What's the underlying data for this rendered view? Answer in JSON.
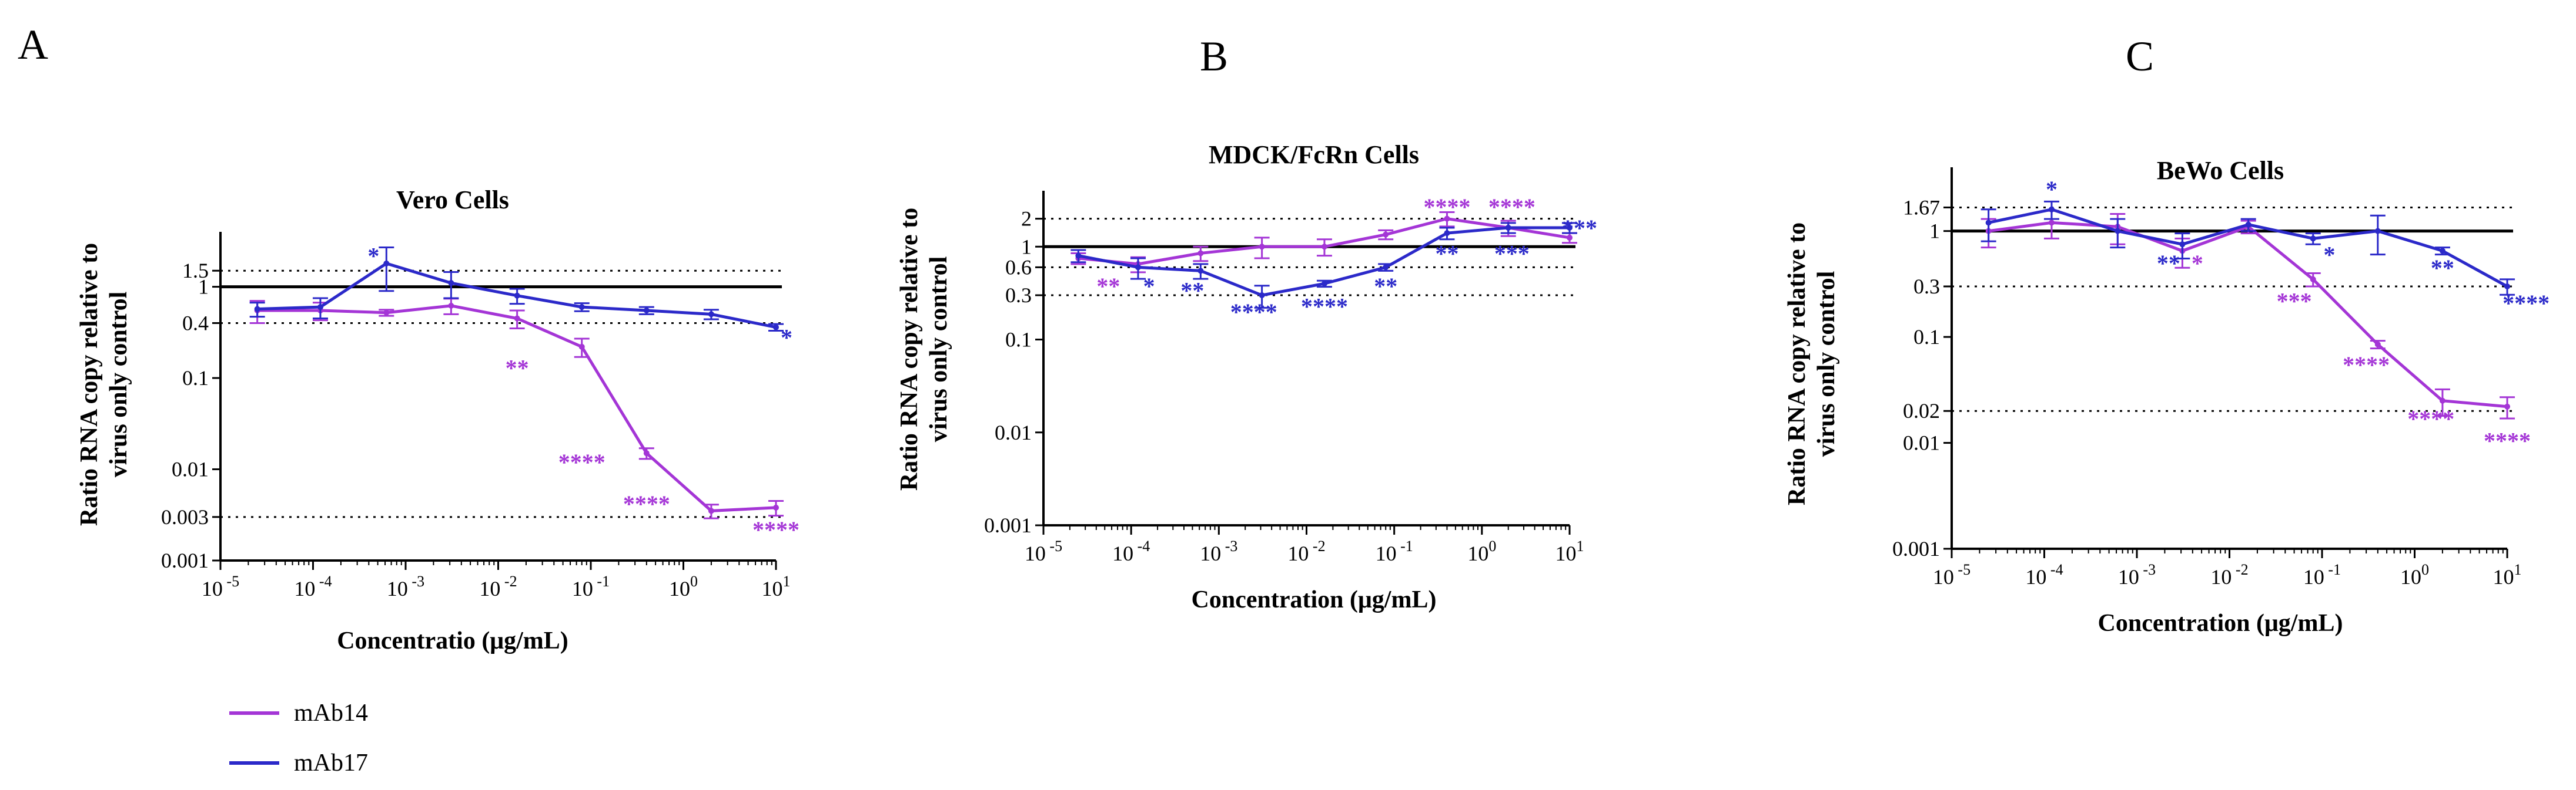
{
  "colors": {
    "mAb14": "#a435d6",
    "mAb17": "#2b29c9",
    "axis": "#000000"
  },
  "legend": [
    {
      "name": "mAb14",
      "color": "#a435d6"
    },
    {
      "name": "mAb17",
      "color": "#2b29c9"
    }
  ],
  "chart_data": [
    {
      "panel": "A",
      "type": "line",
      "title": "Vero Cells",
      "xlabel": "Concentratio (μg/mL)",
      "ylabel": [
        "Ratio RNA copy relative to",
        "virus only control"
      ],
      "xscale": "log",
      "yscale": "log",
      "xlim_exp": [
        -5,
        1
      ],
      "xticks_exp": [
        -5,
        -4,
        -3,
        -2,
        -1,
        0,
        1
      ],
      "ylim": [
        0.001,
        4
      ],
      "yticks": [
        0.001,
        0.003,
        0.01,
        0.1,
        0.4,
        1,
        1.5
      ],
      "ytick_labels": [
        "0.001",
        "0.003",
        "0.01",
        "0.1",
        "0.4",
        "1",
        "1.5"
      ],
      "reference_line": 1,
      "dotted_lines": [
        1.5,
        0.4,
        0.003
      ],
      "series": [
        {
          "name": "mAb14",
          "x": [
            2.5e-05,
            0.00012,
            0.00062,
            0.0031,
            0.016,
            0.08,
            0.4,
            2,
            10
          ],
          "y": [
            0.55,
            0.55,
            0.52,
            0.62,
            0.45,
            0.22,
            0.015,
            0.0035,
            0.0038
          ],
          "err": [
            0.15,
            0.12,
            0.04,
            0.12,
            0.1,
            0.05,
            0.002,
            0.0006,
            0.0007
          ],
          "annotations": [
            {
              "text": "**",
              "x": 0.016,
              "y": 0.13
            },
            {
              "text": "****",
              "x": 0.08,
              "y": 0.012
            },
            {
              "text": "****",
              "x": 0.4,
              "y": 0.0042
            },
            {
              "text": "****",
              "x": 10,
              "y": 0.0022
            }
          ]
        },
        {
          "name": "mAb17",
          "x": [
            2.5e-05,
            0.00012,
            0.00062,
            0.0031,
            0.016,
            0.08,
            0.4,
            2,
            10
          ],
          "y": [
            0.57,
            0.6,
            1.8,
            1.1,
            0.8,
            0.6,
            0.55,
            0.5,
            0.36
          ],
          "err": [
            0.1,
            0.15,
            0.9,
            0.35,
            0.15,
            0.06,
            0.05,
            0.06,
            0.03
          ],
          "annotations": [
            {
              "text": "*",
              "x": 0.00045,
              "y": 2.2
            },
            {
              "text": "*",
              "x": 13,
              "y": 0.28
            }
          ]
        }
      ]
    },
    {
      "panel": "B",
      "type": "line",
      "title": "MDCK/FcRn Cells",
      "xlabel": "Concentration (μg/mL)",
      "ylabel": [
        "Ratio RNA copy relative to",
        "virus only control"
      ],
      "xscale": "log",
      "yscale": "log",
      "xlim_exp": [
        -5,
        1
      ],
      "xticks_exp": [
        -5,
        -4,
        -3,
        -2,
        -1,
        0,
        1
      ],
      "ylim": [
        0.001,
        4
      ],
      "yticks": [
        0.001,
        0.01,
        0.1,
        0.3,
        0.6,
        1,
        2
      ],
      "ytick_labels": [
        "0.001",
        "0.01",
        "0.1",
        "0.3",
        "0.6",
        "1",
        "2"
      ],
      "reference_line": 1,
      "dotted_lines": [
        2,
        0.6,
        0.3
      ],
      "series": [
        {
          "name": "mAb14",
          "x": [
            2.5e-05,
            0.00012,
            0.00062,
            0.0031,
            0.016,
            0.08,
            0.4,
            2,
            10
          ],
          "y": [
            0.75,
            0.65,
            0.85,
            1.0,
            1.0,
            1.35,
            2.0,
            1.6,
            1.25
          ],
          "err": [
            0.1,
            0.12,
            0.15,
            0.25,
            0.2,
            0.15,
            0.35,
            0.3,
            0.15
          ],
          "annotations": [
            {
              "text": "**",
              "x": 5.5e-05,
              "y": 0.38
            },
            {
              "text": "****",
              "x": 0.4,
              "y": 2.7
            },
            {
              "text": "****",
              "x": 2.2,
              "y": 2.7
            }
          ]
        },
        {
          "name": "mAb17",
          "x": [
            2.5e-05,
            0.00012,
            0.00062,
            0.0031,
            0.016,
            0.08,
            0.4,
            2,
            10
          ],
          "y": [
            0.8,
            0.6,
            0.55,
            0.3,
            0.4,
            0.6,
            1.4,
            1.6,
            1.6
          ],
          "err": [
            0.12,
            0.15,
            0.1,
            0.08,
            0.03,
            0.05,
            0.2,
            0.2,
            0.2
          ],
          "annotations": [
            {
              "text": "*",
              "x": 0.00016,
              "y": 0.38
            },
            {
              "text": "**",
              "x": 0.0005,
              "y": 0.34
            },
            {
              "text": "****",
              "x": 0.0025,
              "y": 0.2
            },
            {
              "text": "****",
              "x": 0.016,
              "y": 0.23
            },
            {
              "text": "**",
              "x": 0.08,
              "y": 0.38
            },
            {
              "text": "**",
              "x": 0.4,
              "y": 0.85
            },
            {
              "text": "***",
              "x": 2.2,
              "y": 0.85
            },
            {
              "text": "***",
              "x": 13,
              "y": 1.6
            }
          ]
        }
      ]
    },
    {
      "panel": "C",
      "type": "line",
      "title": "BeWo Cells",
      "xlabel": "Concentration (μg/mL)",
      "ylabel": [
        "Ratio RNA copy relative to",
        "virus only control"
      ],
      "xscale": "log",
      "yscale": "log",
      "xlim_exp": [
        -5,
        1
      ],
      "xticks_exp": [
        -5,
        -4,
        -3,
        -2,
        -1,
        0,
        1
      ],
      "ylim": [
        0.001,
        4
      ],
      "yticks": [
        0.001,
        0.01,
        0.02,
        0.1,
        0.3,
        1,
        1.67
      ],
      "ytick_labels": [
        "0.001",
        "0.01",
        "0.02",
        "0.1",
        "0.3",
        "1",
        "1.67"
      ],
      "reference_line": 1,
      "dotted_lines": [
        1.67,
        0.3,
        0.02
      ],
      "series": [
        {
          "name": "mAb14",
          "x": [
            2.5e-05,
            0.00012,
            0.00062,
            0.0031,
            0.016,
            0.08,
            0.4,
            2,
            10
          ],
          "y": [
            1.0,
            1.2,
            1.1,
            0.65,
            1.1,
            0.35,
            0.085,
            0.025,
            0.022
          ],
          "err": [
            0.3,
            0.35,
            0.35,
            0.2,
            0.15,
            0.05,
            0.007,
            0.007,
            0.005
          ],
          "annotations": [
            {
              "text": "*",
              "x": 0.0045,
              "y": 0.5
            },
            {
              "text": "***",
              "x": 0.05,
              "y": 0.22
            },
            {
              "text": "****",
              "x": 0.3,
              "y": 0.055
            },
            {
              "text": "****",
              "x": 1.5,
              "y": 0.017
            },
            {
              "text": "****",
              "x": 10,
              "y": 0.0105
            }
          ]
        },
        {
          "name": "mAb17",
          "x": [
            2.5e-05,
            0.00012,
            0.00062,
            0.0031,
            0.016,
            0.08,
            0.4,
            2,
            10
          ],
          "y": [
            1.2,
            1.6,
            1.0,
            0.75,
            1.15,
            0.85,
            1.0,
            0.65,
            0.3
          ],
          "err": [
            0.4,
            0.3,
            0.3,
            0.2,
            0.15,
            0.1,
            0.4,
            0.05,
            0.05
          ],
          "annotations": [
            {
              "text": "*",
              "x": 0.00012,
              "y": 2.5
            },
            {
              "text": "**",
              "x": 0.0022,
              "y": 0.5
            },
            {
              "text": "*",
              "x": 0.12,
              "y": 0.6
            },
            {
              "text": "**",
              "x": 2,
              "y": 0.45
            },
            {
              "text": "****",
              "x": 16,
              "y": 0.21
            }
          ]
        }
      ]
    }
  ]
}
